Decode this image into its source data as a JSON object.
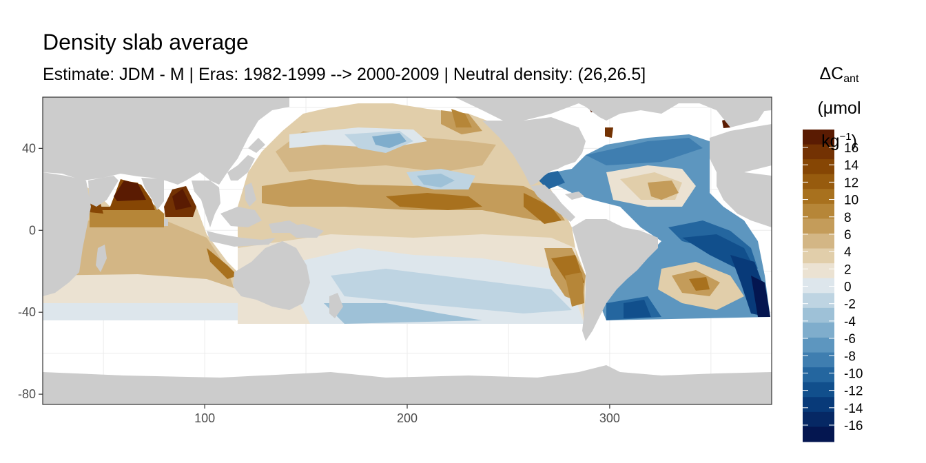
{
  "title": "Density slab average",
  "subtitle": "Estimate: JDM - M | Eras: 1982-1999 --> 2000-2009 | Neutral density: (26,26.5]",
  "legend": {
    "title_main": "ΔC",
    "title_sub": "ant",
    "unit_open": "(μmol kg",
    "unit_sup": "−1",
    "unit_close": ")",
    "colors": [
      "#5a1b02",
      "#733203",
      "#864604",
      "#975b0e",
      "#a8711e",
      "#b68638",
      "#c49c5a",
      "#d3b685",
      "#e1ceaa",
      "#ebe2d2",
      "#dde6ec",
      "#bed4e2",
      "#9ec1d7",
      "#7fadcc",
      "#5d96bf",
      "#3f7eb0",
      "#24669f",
      "#114f8c",
      "#083a79",
      "#062864",
      "#041650"
    ],
    "labels": [
      "16",
      "14",
      "12",
      "10",
      "8",
      "6",
      "4",
      "2",
      "0",
      "-2",
      "-4",
      "-6",
      "-8",
      "-10",
      "-12",
      "-14",
      "-16"
    ]
  },
  "chart_data": {
    "type": "heatmap",
    "title": "Density slab average",
    "subtitle": "Estimate: JDM - M | Eras: 1982-1999 --> 2000-2009 | Neutral density: (26,26.5]",
    "xlabel": "",
    "ylabel": "",
    "xlim": [
      20,
      380
    ],
    "ylim": [
      -85,
      65
    ],
    "x_ticks": [
      100,
      200,
      300
    ],
    "y_ticks": [
      40,
      0,
      -40,
      -80
    ],
    "grid": true,
    "legend_position": "right",
    "value_range": [
      -17,
      17
    ],
    "colors": {
      "land": "#cccccc",
      "missing": "#ffffff",
      "panel_grid": "#ebebeb"
    }
  }
}
